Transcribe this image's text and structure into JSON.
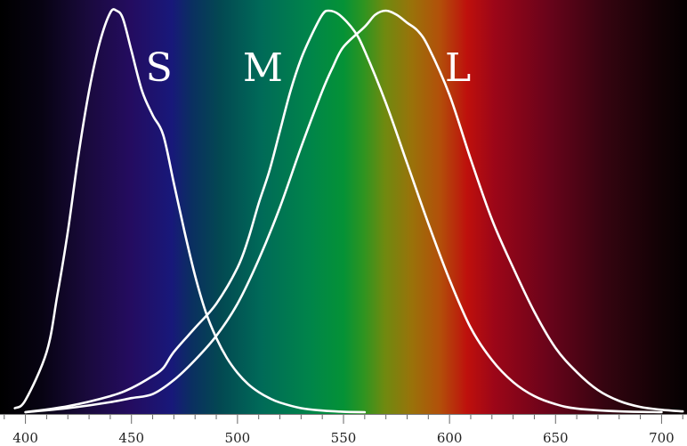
{
  "chart_data": {
    "type": "line",
    "title": "",
    "xlabel": "",
    "ylabel": "",
    "xlim": [
      388,
      712
    ],
    "ylim": [
      0,
      1
    ],
    "x_ticks": [
      {
        "value": 400,
        "label": "400"
      },
      {
        "value": 450,
        "label": "450"
      },
      {
        "value": 500,
        "label": "500"
      },
      {
        "value": 550,
        "label": "550"
      },
      {
        "value": 600,
        "label": "600"
      },
      {
        "value": 650,
        "label": "650"
      },
      {
        "value": 700,
        "label": "700"
      }
    ],
    "minor_tick_step": 10,
    "background": "visible spectrum gradient",
    "line_color": "#ffffff",
    "series": [
      {
        "name": "S",
        "label_x": 463,
        "label_y": 0.86,
        "points": [
          [
            395,
            0.01
          ],
          [
            400,
            0.03
          ],
          [
            410,
            0.15
          ],
          [
            415,
            0.29
          ],
          [
            420,
            0.45
          ],
          [
            425,
            0.64
          ],
          [
            430,
            0.8
          ],
          [
            435,
            0.92
          ],
          [
            440,
            0.995
          ],
          [
            443,
            1.0
          ],
          [
            446,
            0.98
          ],
          [
            450,
            0.9
          ],
          [
            455,
            0.8
          ],
          [
            460,
            0.74
          ],
          [
            465,
            0.69
          ],
          [
            470,
            0.57
          ],
          [
            475,
            0.45
          ],
          [
            480,
            0.34
          ],
          [
            485,
            0.25
          ],
          [
            490,
            0.185
          ],
          [
            495,
            0.135
          ],
          [
            500,
            0.098
          ],
          [
            505,
            0.07
          ],
          [
            510,
            0.05
          ],
          [
            515,
            0.035
          ],
          [
            520,
            0.024
          ],
          [
            530,
            0.01
          ],
          [
            540,
            0.004
          ],
          [
            550,
            0.001
          ],
          [
            560,
            0.0
          ]
        ]
      },
      {
        "name": "M",
        "label_x": 512,
        "label_y": 0.86,
        "points": [
          [
            400,
            0.0
          ],
          [
            420,
            0.015
          ],
          [
            440,
            0.04
          ],
          [
            450,
            0.06
          ],
          [
            460,
            0.09
          ],
          [
            465,
            0.11
          ],
          [
            470,
            0.15
          ],
          [
            480,
            0.21
          ],
          [
            490,
            0.27
          ],
          [
            500,
            0.36
          ],
          [
            505,
            0.43
          ],
          [
            510,
            0.52
          ],
          [
            515,
            0.6
          ],
          [
            520,
            0.7
          ],
          [
            525,
            0.8
          ],
          [
            530,
            0.88
          ],
          [
            535,
            0.94
          ],
          [
            540,
            0.99
          ],
          [
            543,
            1.0
          ],
          [
            548,
            0.99
          ],
          [
            555,
            0.95
          ],
          [
            560,
            0.9
          ],
          [
            570,
            0.77
          ],
          [
            580,
            0.62
          ],
          [
            590,
            0.47
          ],
          [
            600,
            0.33
          ],
          [
            610,
            0.21
          ],
          [
            620,
            0.13
          ],
          [
            630,
            0.075
          ],
          [
            640,
            0.04
          ],
          [
            650,
            0.02
          ],
          [
            660,
            0.009
          ],
          [
            680,
            0.002
          ],
          [
            700,
            0.0
          ]
        ]
      },
      {
        "name": "L",
        "label_x": 604,
        "label_y": 0.86,
        "points": [
          [
            400,
            0.0
          ],
          [
            420,
            0.01
          ],
          [
            440,
            0.025
          ],
          [
            450,
            0.035
          ],
          [
            460,
            0.045
          ],
          [
            470,
            0.08
          ],
          [
            480,
            0.13
          ],
          [
            490,
            0.19
          ],
          [
            500,
            0.27
          ],
          [
            510,
            0.38
          ],
          [
            520,
            0.51
          ],
          [
            530,
            0.66
          ],
          [
            540,
            0.8
          ],
          [
            545,
            0.86
          ],
          [
            550,
            0.91
          ],
          [
            560,
            0.96
          ],
          [
            565,
            0.99
          ],
          [
            570,
            1.0
          ],
          [
            575,
            0.99
          ],
          [
            580,
            0.97
          ],
          [
            585,
            0.95
          ],
          [
            590,
            0.91
          ],
          [
            600,
            0.79
          ],
          [
            610,
            0.63
          ],
          [
            620,
            0.48
          ],
          [
            630,
            0.36
          ],
          [
            640,
            0.25
          ],
          [
            650,
            0.16
          ],
          [
            660,
            0.1
          ],
          [
            670,
            0.055
          ],
          [
            680,
            0.028
          ],
          [
            690,
            0.013
          ],
          [
            700,
            0.006
          ],
          [
            710,
            0.002
          ]
        ]
      }
    ]
  }
}
